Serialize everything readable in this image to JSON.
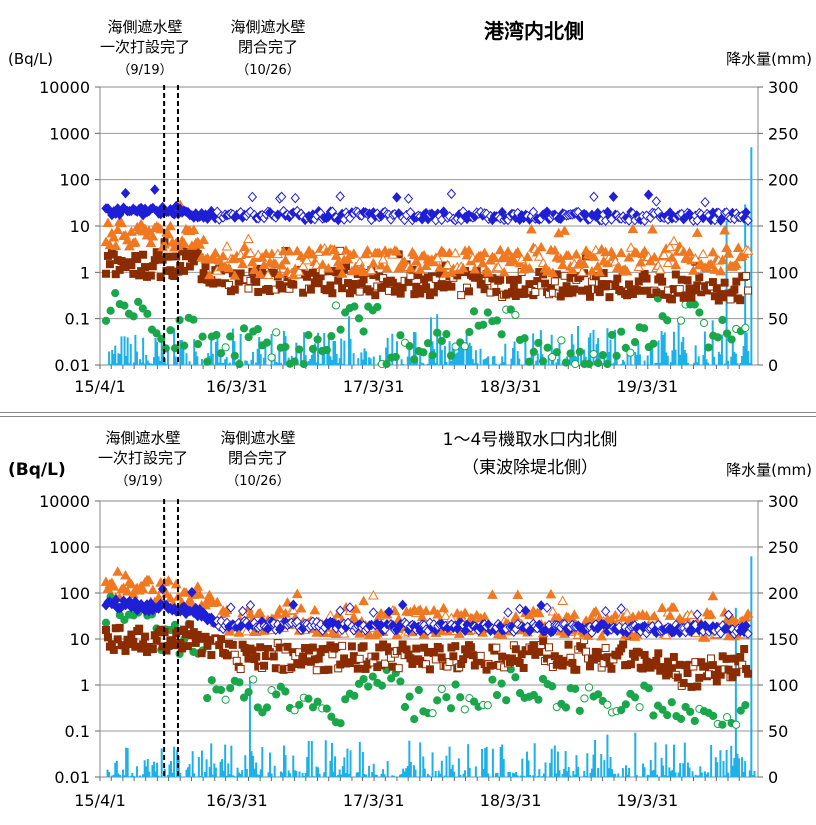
{
  "charts": [
    {
      "title_lines": [
        "港湾内北側"
      ],
      "annotation1": {
        "line1": "海側遮水壁",
        "line2": "一次打設完了",
        "line3": "（9/19）"
      },
      "annotation2": {
        "line1": "海側遮水壁",
        "line2": "閉合完了",
        "line3": "（10/26）"
      },
      "y_left_label": "(Bq/L)",
      "y_right_label": "降水量(mm)"
    },
    {
      "title_lines": [
        "1～4号機取水口内北側",
        "（東波除堤北側）"
      ],
      "annotation1": {
        "line1": "海側遮水壁",
        "line2": "一次打設完了",
        "line3": "（9/19）"
      },
      "annotation2": {
        "line1": "海側遮水壁",
        "line2": "閉合完了",
        "line3": "（10/26）"
      },
      "y_left_label": "(Bq/L)",
      "y_right_label": "降水量(mm)"
    }
  ],
  "chart_data": [
    {
      "type": "scatter",
      "title": "港湾内北側",
      "ylabel": "(Bq/L)",
      "y2label": "降水量(mm)",
      "x_range": [
        "2015-04-01",
        "2020-01-20"
      ],
      "x_ticks": [
        "15/4/1",
        "16/3/31",
        "17/3/31",
        "18/3/31",
        "19/3/31"
      ],
      "y_scale": "log",
      "ylim": [
        0.01,
        10000
      ],
      "y_ticks": [
        "0.01",
        "0.1",
        "1",
        "10",
        "100",
        "1000",
        "10000"
      ],
      "y2lim": [
        0,
        300
      ],
      "y2_ticks": [
        "0",
        "50",
        "100",
        "150",
        "200",
        "250",
        "300"
      ],
      "vlines": [
        "2015-09-19",
        "2015-10-26"
      ],
      "grid": true,
      "series": [
        {
          "marker": "diamond",
          "color": "#1f1fd6",
          "approx_level": [
            [
              0,
              20
            ],
            [
              0.12,
              22
            ],
            [
              0.14,
              17
            ],
            [
              1,
              16
            ]
          ],
          "sample_values": [
            18,
            22,
            25,
            17,
            16,
            17,
            18,
            17,
            16,
            16,
            15,
            16,
            15
          ]
        },
        {
          "marker": "triangle",
          "color": "#f07820",
          "approx_level": [
            [
              0,
              7
            ],
            [
              0.14,
              6
            ],
            [
              0.16,
              1.6
            ],
            [
              1,
              2
            ]
          ],
          "sample_values": [
            8,
            7,
            6,
            1.6,
            2,
            3,
            2,
            2.5,
            3,
            2,
            7,
            2,
            2
          ]
        },
        {
          "marker": "square",
          "color": "#8b2c00",
          "approx_level": [
            [
              0,
              1.5
            ],
            [
              0.14,
              1.5
            ],
            [
              0.16,
              0.7
            ],
            [
              1,
              0.45
            ]
          ],
          "sample_values": [
            1.5,
            1.3,
            0.7,
            0.6,
            0.5,
            0.6,
            0.5,
            0.4,
            0.5,
            0.6,
            0.45,
            0.4,
            0.35
          ]
        },
        {
          "marker": "circle",
          "color": "#1aa64a",
          "sample_values": [
            0.2,
            0.05,
            0.02,
            0.03,
            0.02,
            0.1,
            0.02,
            0.03,
            0.1,
            0.02,
            0.01,
            0.03,
            0.2,
            0.05
          ]
        },
        {
          "marker": "bar",
          "color": "#1fb0e8",
          "axis": "right",
          "sample_values": [
            10,
            30,
            15,
            180,
            40,
            80,
            60,
            90,
            55,
            40,
            120,
            30,
            45,
            60,
            50,
            70,
            235
          ]
        }
      ]
    },
    {
      "type": "scatter",
      "title": "1～4号機取水口内北側（東波除堤北側）",
      "ylabel": "(Bq/L)",
      "y2label": "降水量(mm)",
      "x_range": [
        "2015-04-01",
        "2020-01-20"
      ],
      "x_ticks": [
        "15/4/1",
        "16/3/31",
        "17/3/31",
        "18/3/31",
        "19/3/31"
      ],
      "y_scale": "log",
      "ylim": [
        0.01,
        10000
      ],
      "y_ticks": [
        "0.01",
        "0.1",
        "1",
        "10",
        "100",
        "1000",
        "10000"
      ],
      "y2lim": [
        0,
        300
      ],
      "y2_ticks": [
        "0",
        "50",
        "100",
        "150",
        "200",
        "250",
        "300"
      ],
      "vlines": [
        "2015-09-19",
        "2015-10-26"
      ],
      "grid": true,
      "series": [
        {
          "marker": "diamond",
          "color": "#1f1fd6",
          "approx_level": [
            [
              0,
              60
            ],
            [
              0.14,
              40
            ],
            [
              0.18,
              20
            ],
            [
              1,
              16
            ]
          ],
          "sample_values": [
            70,
            50,
            40,
            20,
            18,
            25,
            20,
            18,
            30,
            20,
            18,
            16,
            15
          ]
        },
        {
          "marker": "triangle",
          "color": "#f07820",
          "approx_level": [
            [
              0,
              150
            ],
            [
              0.14,
              80
            ],
            [
              0.18,
              25
            ],
            [
              1,
              20
            ]
          ],
          "sample_values": [
            200,
            150,
            100,
            30,
            25,
            25,
            30,
            20,
            25,
            20,
            20,
            18,
            15
          ]
        },
        {
          "marker": "square",
          "color": "#8b2c00",
          "approx_level": [
            [
              0,
              10
            ],
            [
              0.16,
              8
            ],
            [
              0.2,
              4
            ],
            [
              0.85,
              4
            ],
            [
              0.9,
              1.5
            ],
            [
              1,
              3
            ]
          ],
          "sample_values": [
            12,
            8,
            5,
            4,
            3,
            5,
            4,
            3,
            4,
            5,
            3,
            1.5,
            3
          ]
        },
        {
          "marker": "circle",
          "color": "#1aa64a",
          "sample_values": [
            50,
            10,
            1,
            0.5,
            0.3,
            1,
            0.4,
            0.6,
            1,
            0.5,
            0.5,
            0.3,
            0.2
          ]
        },
        {
          "marker": "bar",
          "color": "#1fb0e8",
          "axis": "right",
          "sample_values": [
            10,
            30,
            15,
            110,
            40,
            80,
            60,
            90,
            55,
            40,
            120,
            30,
            45,
            60,
            50,
            70,
            240
          ]
        }
      ]
    }
  ]
}
